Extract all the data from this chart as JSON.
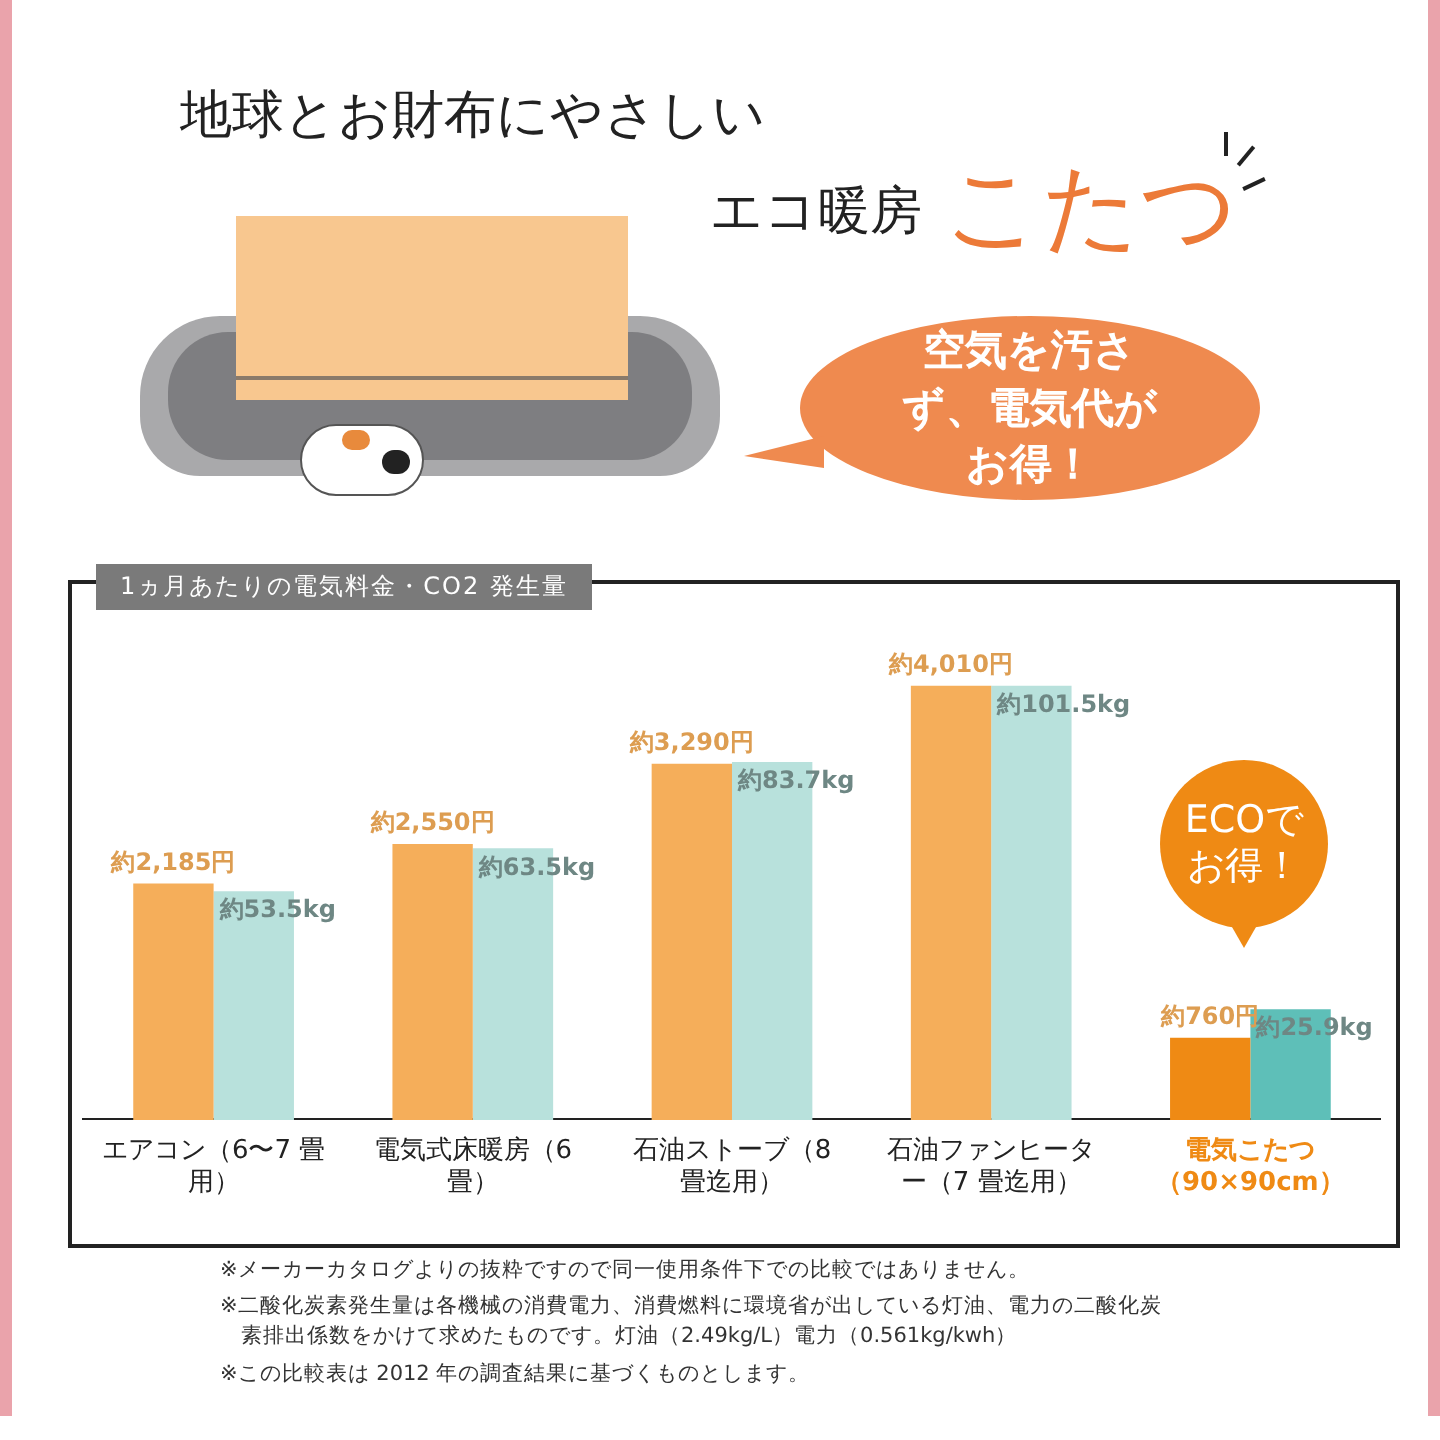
{
  "chart_data": {
    "type": "bar",
    "title": "1ヵ月あたりの電気料金・CO2 発生量",
    "categories": [
      "エアコン（6〜7 畳用）",
      "電気式床暖房（6畳）",
      "石油ストーブ（8 畳迄用）",
      "石油ファンヒーター（7 畳迄用）",
      "電気こたつ（90×90cm）"
    ],
    "series": [
      {
        "color": "#f5ae5a",
        "colors": [
          "#f5ae5a",
          "#f5ae5a",
          "#f5ae5a",
          "#f5ae5a",
          "#ef8a14"
        ],
        "values": [
          2185,
          2550,
          3290,
          4010,
          760
        ],
        "value_labels": [
          "約2,185円",
          "約2,550円",
          "約3,290円",
          "約4,010円",
          "約760円"
        ]
      },
      {
        "color": "#b8e1dc",
        "colors": [
          "#b8e1dc",
          "#b8e1dc",
          "#b8e1dc",
          "#b8e1dc",
          "#5ebfb8"
        ],
        "axis": "y2",
        "values": [
          53.5,
          63.5,
          83.7,
          101.5,
          25.9
        ],
        "value_labels": [
          "約53.5kg",
          "約63.5kg",
          "約83.7kg",
          "約101.5kg",
          "約25.9kg"
        ]
      }
    ],
    "tick_labels": "x",
    "grid": false,
    "legend": false,
    "annotations": [
      "地球とお財布にやさしい",
      "エコ暖房",
      "こたつ",
      "空気を汚さず、電気代がお得！",
      "ECOでお得！",
      "※メーカーカタログよりの抜粋ですので同一使用条件下での比較ではありません。",
      "※二酸化炭素発生量は各機械の消費電力、消費燃料に環境省が出している灯油、電力の二酸化炭素排出係数をかけて求めたものです。灯油（2.49kg/L）電力（0.561kg/kwh）",
      "※この比較表は 2012 年の調査結果に基づくものとします。"
    ]
  }
}
